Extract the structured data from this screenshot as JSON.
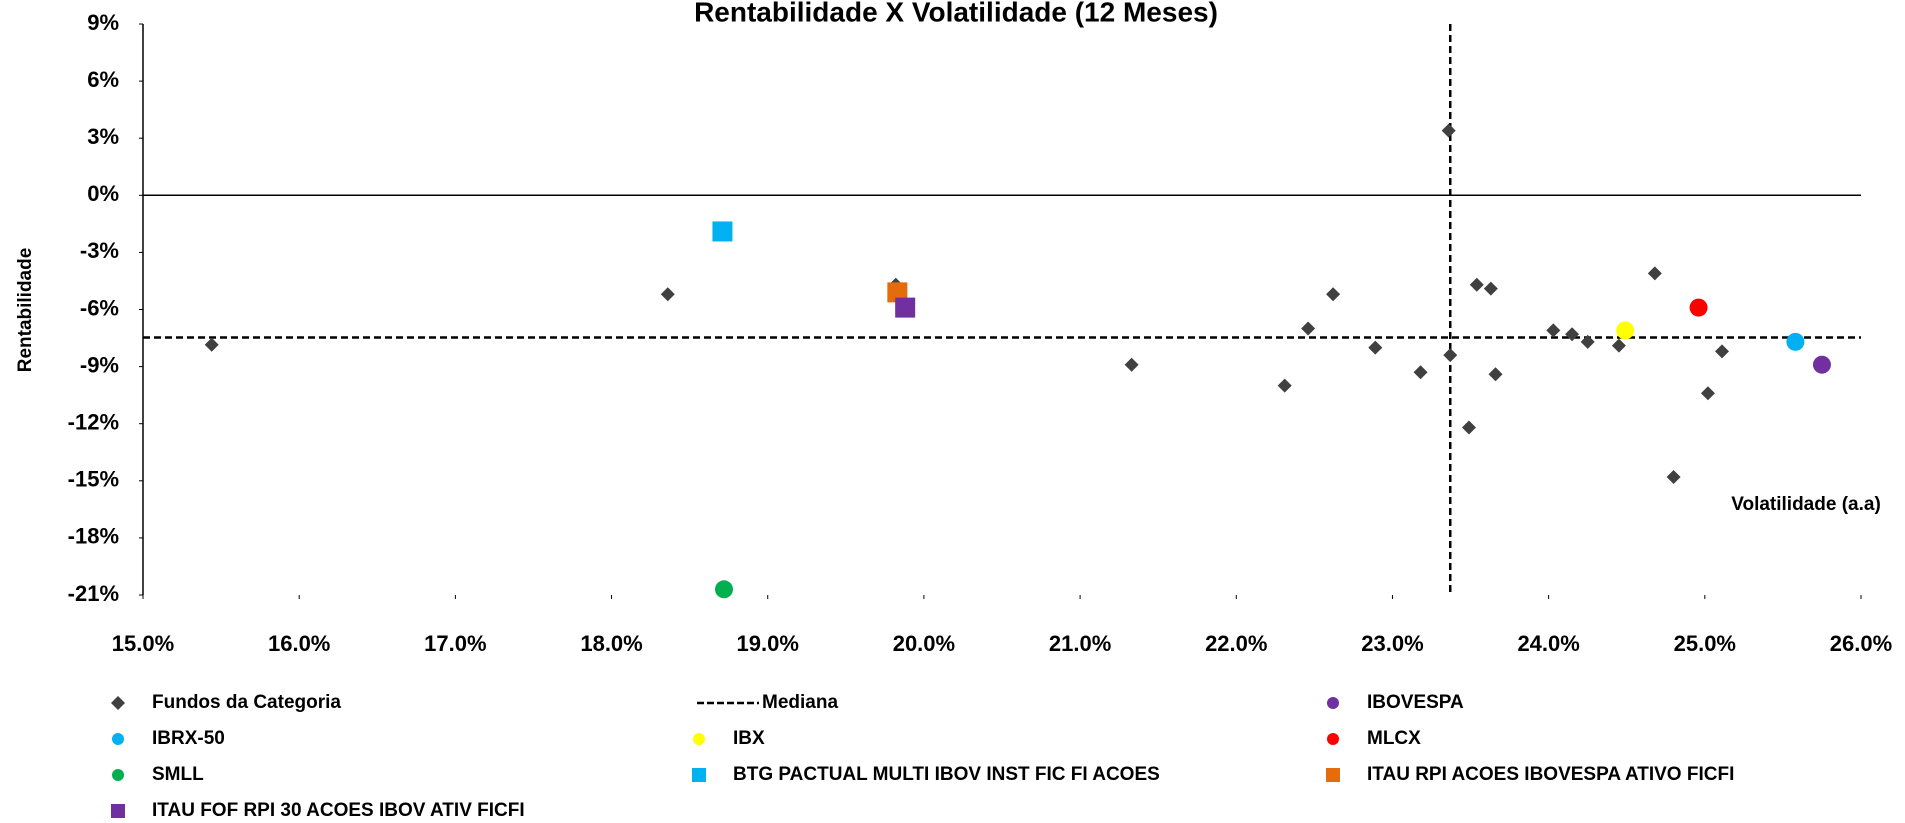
{
  "chart_data": {
    "type": "scatter",
    "title": "Rentabilidade X Volatilidade (12 Meses)",
    "y_label": "Rentabilidade",
    "x_label": "Volatilidade (a.a)",
    "xlim": [
      15,
      26
    ],
    "ylim": [
      -21,
      9
    ],
    "xticks": [
      {
        "value": 15,
        "label": "15.0%"
      },
      {
        "value": 16,
        "label": "16.0%"
      },
      {
        "value": 17,
        "label": "17.0%"
      },
      {
        "value": 18,
        "label": "18.0%"
      },
      {
        "value": 19,
        "label": "19.0%"
      },
      {
        "value": 20,
        "label": "20.0%"
      },
      {
        "value": 21,
        "label": "21.0%"
      },
      {
        "value": 22,
        "label": "22.0%"
      },
      {
        "value": 23,
        "label": "23.0%"
      },
      {
        "value": 24,
        "label": "24.0%"
      },
      {
        "value": 25,
        "label": "25.0%"
      },
      {
        "value": 26,
        "label": "26.0%"
      }
    ],
    "yticks": [
      {
        "value": 9,
        "label": "9%"
      },
      {
        "value": 6,
        "label": "6%"
      },
      {
        "value": 3,
        "label": "3%"
      },
      {
        "value": 0,
        "label": "0%"
      },
      {
        "value": -3,
        "label": "-3%"
      },
      {
        "value": -6,
        "label": "-6%"
      },
      {
        "value": -9,
        "label": "-9%"
      },
      {
        "value": -12,
        "label": "-12%"
      },
      {
        "value": -15,
        "label": "-15%"
      },
      {
        "value": -18,
        "label": "-18%"
      },
      {
        "value": -21,
        "label": "-21%"
      }
    ],
    "median": {
      "name": "Mediana",
      "x": 23.37,
      "y": -7.47
    },
    "series": [
      {
        "name": "Fundos da Categoria",
        "color": "#404040",
        "marker": "diamond",
        "x": [
          15.44,
          18.36,
          19.82,
          19.82,
          21.33,
          22.31,
          22.46,
          22.62,
          22.89,
          23.18,
          23.36,
          23.37,
          23.49,
          23.54,
          23.63,
          23.66,
          24.03,
          24.15,
          24.25,
          24.45,
          24.68,
          24.8,
          25.02,
          25.11
        ],
        "y": [
          -7.85,
          -5.2,
          -4.7,
          -5.1,
          -8.9,
          -10.0,
          -7.0,
          -5.2,
          -8.0,
          -9.3,
          3.4,
          -8.4,
          -12.2,
          -4.7,
          -4.9,
          -9.4,
          -7.1,
          -7.3,
          -7.7,
          -7.9,
          -4.1,
          -14.8,
          -10.4,
          -8.2
        ]
      },
      {
        "name": "IBOVESPA",
        "color": "#7030a0",
        "marker": "circle",
        "x": [
          25.75
        ],
        "y": [
          -8.9
        ]
      },
      {
        "name": "IBRX-50",
        "color": "#00b0f0",
        "marker": "circle",
        "x": [
          25.58
        ],
        "y": [
          -7.7
        ]
      },
      {
        "name": "IBX",
        "color": "#ffff00",
        "marker": "circle",
        "x": [
          24.49
        ],
        "y": [
          -7.1
        ]
      },
      {
        "name": "MLCX",
        "color": "#ff0000",
        "marker": "circle",
        "x": [
          24.96
        ],
        "y": [
          -5.9
        ]
      },
      {
        "name": "SMLL",
        "color": "#00b050",
        "marker": "circle",
        "x": [
          18.72
        ],
        "y": [
          -20.7
        ]
      },
      {
        "name": "BTG PACTUAL MULTI IBOV INST FIC FI ACOES",
        "color": "#00b0f0",
        "marker": "square",
        "x": [
          18.71
        ],
        "y": [
          -1.9
        ]
      },
      {
        "name": "ITAU RPI ACOES IBOVESPA ATIVO FICFI",
        "color": "#e46c0a",
        "marker": "square",
        "x": [
          19.83
        ],
        "y": [
          -5.1
        ]
      },
      {
        "name": "ITAU FOF RPI 30 ACOES IBOV ATIV FICFI",
        "color": "#7030a0",
        "marker": "square",
        "x": [
          19.88
        ],
        "y": [
          -5.9
        ]
      }
    ]
  }
}
